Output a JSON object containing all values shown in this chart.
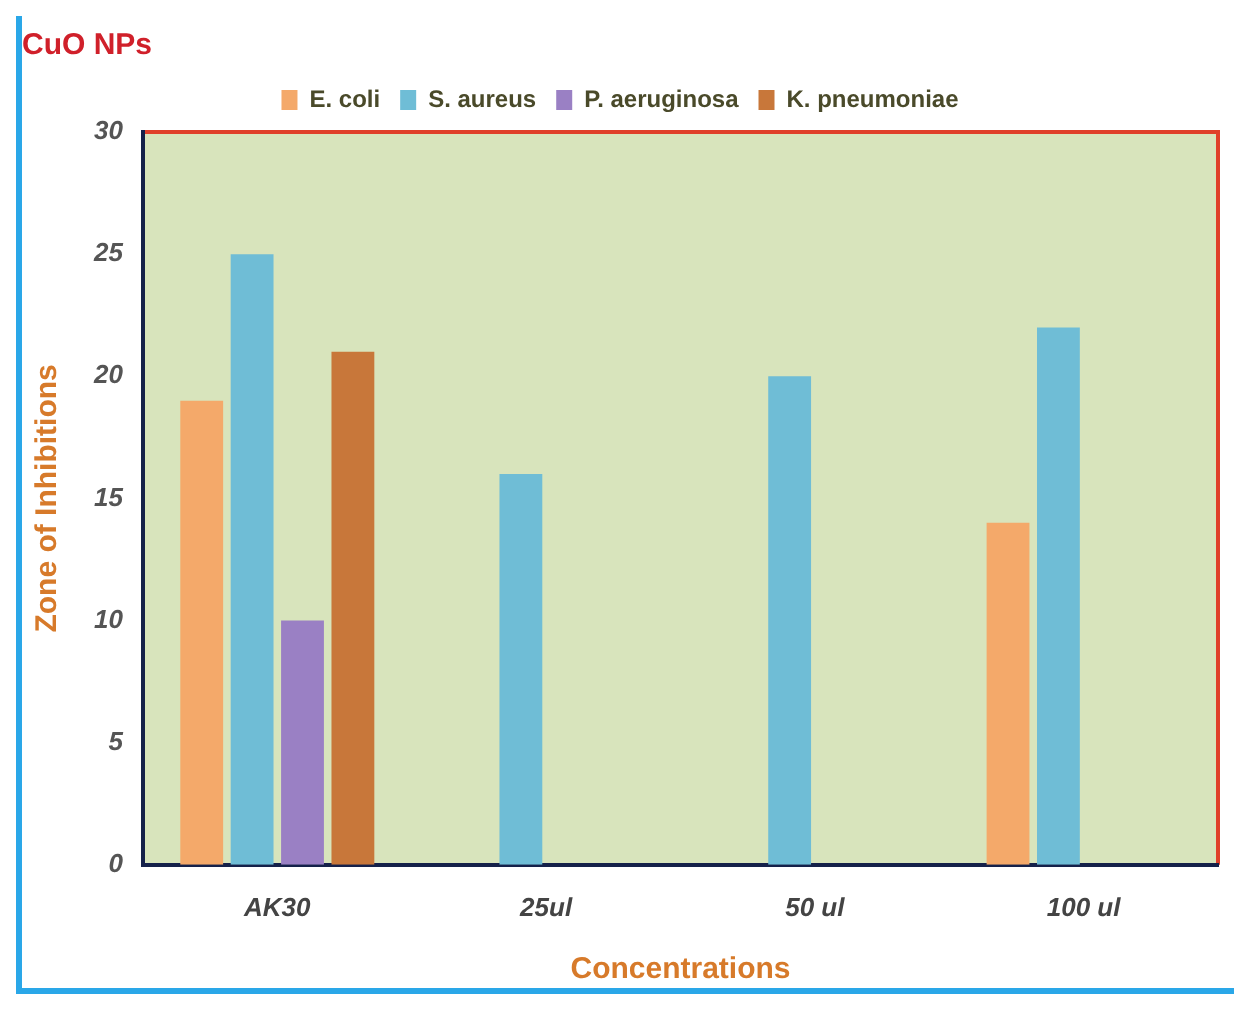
{
  "chart_data": {
    "type": "bar",
    "title": "CuO NPs",
    "xlabel": "Concentrations",
    "ylabel": "Zone of Inhibitions",
    "categories": [
      "AK30",
      "25ul",
      "50 ul",
      "100 ul"
    ],
    "series": [
      {
        "name": "E. coli",
        "color": "#f4a96a",
        "values": [
          19,
          null,
          null,
          14
        ]
      },
      {
        "name": "S. aureus",
        "color": "#6fbdd6",
        "values": [
          25,
          16,
          20,
          22
        ]
      },
      {
        "name": "P. aeruginosa",
        "color": "#9a80c4",
        "values": [
          10,
          null,
          null,
          null
        ]
      },
      {
        "name": "K. pneumoniae",
        "color": "#c8773a",
        "values": [
          21,
          null,
          null,
          null
        ]
      }
    ],
    "ylim": [
      0,
      30
    ],
    "yticks": [
      0,
      5,
      10,
      15,
      20,
      25,
      30
    ],
    "grid": false,
    "legend": "top"
  }
}
